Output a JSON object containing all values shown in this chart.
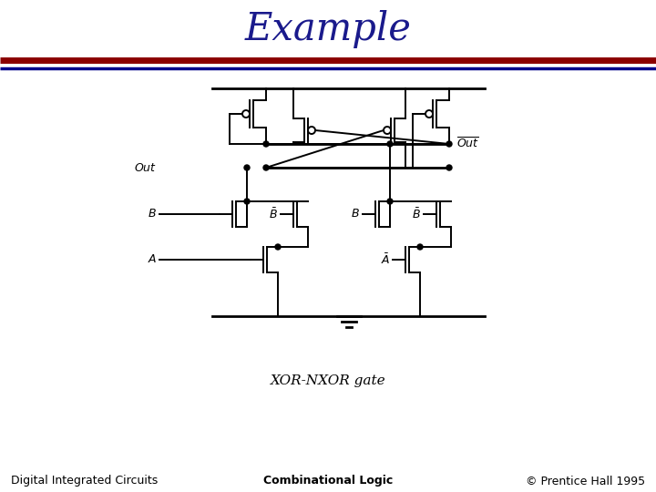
{
  "title": "Example",
  "title_color": "#1a1a8c",
  "title_fontsize": 30,
  "title_fontstyle": "italic",
  "title_fontfamily": "serif",
  "line1_color": "#8b0000",
  "line2_color": "#00008b",
  "footer_left": "Digital Integrated Circuits",
  "footer_center": "Combinational Logic",
  "footer_right": "© Prentice Hall 1995",
  "caption": "XOR-NXOR gate",
  "bg_color": "#ffffff",
  "footer_fontsize": 9,
  "caption_fontsize": 11
}
